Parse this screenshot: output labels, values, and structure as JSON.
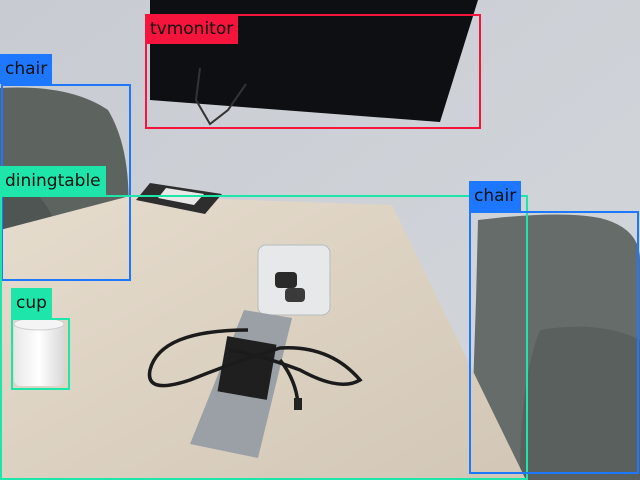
{
  "detections": [
    {
      "label": "tvmonitor",
      "color": "#f5143c"
    },
    {
      "label": "chair",
      "color": "#1e78ff"
    },
    {
      "label": "diningtable",
      "color": "#1ee6aa"
    },
    {
      "label": "chair",
      "color": "#1e78ff"
    },
    {
      "label": "cup",
      "color": "#1ee6aa"
    }
  ]
}
